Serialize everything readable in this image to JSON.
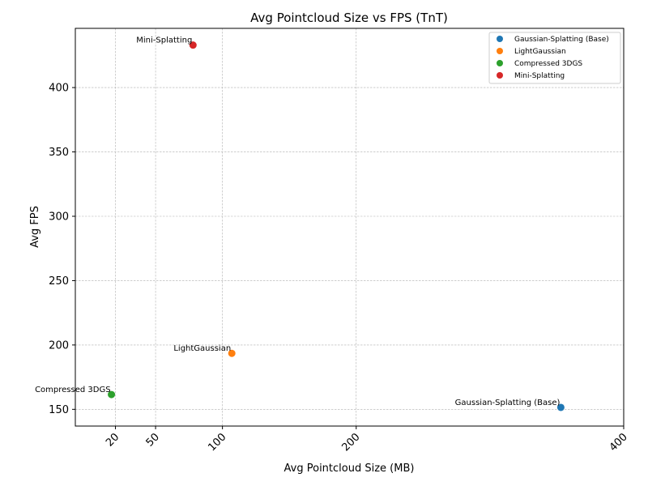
{
  "chart_data": {
    "type": "scatter",
    "title": "Avg Pointcloud Size vs FPS (TnT)",
    "xlabel": "Avg Pointcloud Size (MB)",
    "ylabel": "Avg FPS",
    "xlim": [
      -10,
      400
    ],
    "ylim": [
      137,
      446
    ],
    "xticks": [
      20,
      50,
      100,
      200,
      400
    ],
    "yticks": [
      150,
      200,
      250,
      300,
      350,
      400
    ],
    "grid": true,
    "legend_position": "top-right",
    "series": [
      {
        "name": "Gaussian-Splatting (Base)",
        "color": "#1f77b4",
        "x": 353,
        "y": 151.5
      },
      {
        "name": "LightGaussian",
        "color": "#ff7f0e",
        "x": 107,
        "y": 193.5
      },
      {
        "name": "Compressed 3DGS",
        "color": "#2ca02c",
        "x": 17,
        "y": 161.5
      },
      {
        "name": "Mini-Splatting",
        "color": "#d62728",
        "x": 78,
        "y": 433
      }
    ]
  }
}
